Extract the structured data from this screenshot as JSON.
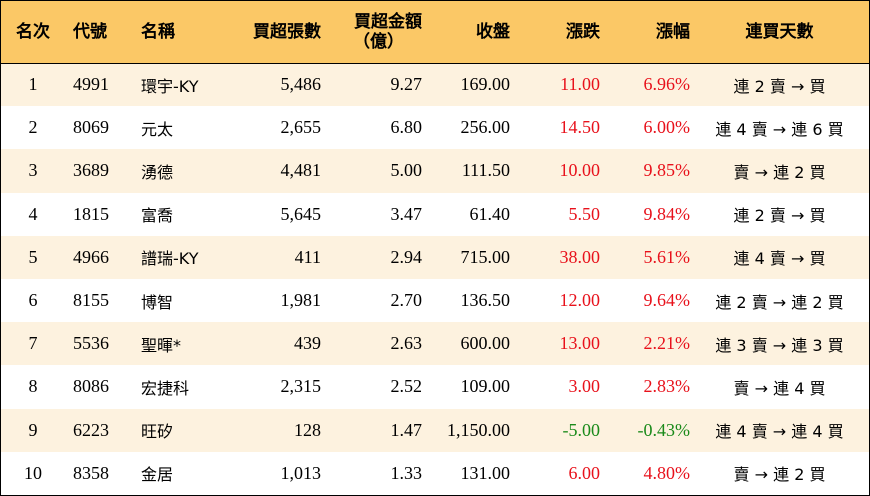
{
  "colors": {
    "header_bg": "#fbc866",
    "stripe_bg": "#fdf2df",
    "up": "#e8111b",
    "down": "#1a8a1a"
  },
  "headers": {
    "rank": "名次",
    "code": "代號",
    "name": "名稱",
    "net_buy_lots": "買超張數",
    "net_buy_amount_line1": "買超金額",
    "net_buy_amount_line2": "（億）",
    "close": "收盤",
    "change": "漲跌",
    "change_pct": "漲幅",
    "streak": "連買天數"
  },
  "rows": [
    {
      "rank": "1",
      "code": "4991",
      "name": "環宇-KY",
      "lots": "5,486",
      "amount": "9.27",
      "close": "169.00",
      "change": "11.00",
      "pct": "6.96%",
      "streak": "連 2 賣 → 買",
      "dir": "up"
    },
    {
      "rank": "2",
      "code": "8069",
      "name": "元太",
      "lots": "2,655",
      "amount": "6.80",
      "close": "256.00",
      "change": "14.50",
      "pct": "6.00%",
      "streak": "連 4 賣 → 連 6 買",
      "dir": "up"
    },
    {
      "rank": "3",
      "code": "3689",
      "name": "湧德",
      "lots": "4,481",
      "amount": "5.00",
      "close": "111.50",
      "change": "10.00",
      "pct": "9.85%",
      "streak": "賣 → 連 2 買",
      "dir": "up"
    },
    {
      "rank": "4",
      "code": "1815",
      "name": "富喬",
      "lots": "5,645",
      "amount": "3.47",
      "close": "61.40",
      "change": "5.50",
      "pct": "9.84%",
      "streak": "連 2 賣 → 買",
      "dir": "up"
    },
    {
      "rank": "5",
      "code": "4966",
      "name": "譜瑞-KY",
      "lots": "411",
      "amount": "2.94",
      "close": "715.00",
      "change": "38.00",
      "pct": "5.61%",
      "streak": "連 4 賣 → 買",
      "dir": "up"
    },
    {
      "rank": "6",
      "code": "8155",
      "name": "博智",
      "lots": "1,981",
      "amount": "2.70",
      "close": "136.50",
      "change": "12.00",
      "pct": "9.64%",
      "streak": "連 2 賣 → 連 2 買",
      "dir": "up"
    },
    {
      "rank": "7",
      "code": "5536",
      "name": "聖暉*",
      "lots": "439",
      "amount": "2.63",
      "close": "600.00",
      "change": "13.00",
      "pct": "2.21%",
      "streak": "連 3 賣 → 連 3 買",
      "dir": "up"
    },
    {
      "rank": "8",
      "code": "8086",
      "name": "宏捷科",
      "lots": "2,315",
      "amount": "2.52",
      "close": "109.00",
      "change": "3.00",
      "pct": "2.83%",
      "streak": "賣 → 連 4 買",
      "dir": "up"
    },
    {
      "rank": "9",
      "code": "6223",
      "name": "旺矽",
      "lots": "128",
      "amount": "1.47",
      "close": "1,150.00",
      "change": "-5.00",
      "pct": "-0.43%",
      "streak": "連 4 賣 → 連 4 買",
      "dir": "down"
    },
    {
      "rank": "10",
      "code": "8358",
      "name": "金居",
      "lots": "1,013",
      "amount": "1.33",
      "close": "131.00",
      "change": "6.00",
      "pct": "4.80%",
      "streak": "賣 → 連 2 買",
      "dir": "up"
    }
  ]
}
